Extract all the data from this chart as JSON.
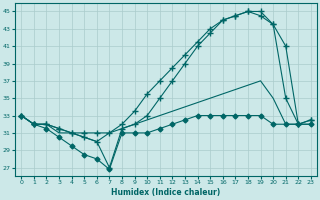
{
  "xlabel": "Humidex (Indice chaleur)",
  "bg_color": "#cce8e8",
  "grid_color": "#aacccc",
  "line_color": "#006666",
  "xlim": [
    -0.5,
    23.5
  ],
  "ylim": [
    26,
    46
  ],
  "yticks": [
    27,
    29,
    31,
    33,
    35,
    37,
    39,
    41,
    43,
    45
  ],
  "xticks": [
    0,
    1,
    2,
    3,
    4,
    5,
    6,
    7,
    8,
    9,
    10,
    11,
    12,
    13,
    14,
    15,
    16,
    17,
    18,
    19,
    20,
    21,
    22,
    23
  ],
  "lines": [
    {
      "x": [
        0,
        1,
        2,
        3,
        4,
        5,
        6,
        7,
        8,
        9,
        10,
        11,
        12,
        13,
        14,
        15,
        16,
        17,
        18,
        19,
        20,
        21,
        22,
        23
      ],
      "y": [
        33,
        32,
        32,
        31,
        31,
        30.5,
        30,
        31,
        31.5,
        32,
        32.5,
        33,
        33.5,
        34,
        34.5,
        35,
        35.5,
        36,
        36.5,
        37,
        35,
        32,
        32,
        32
      ],
      "marker": null
    },
    {
      "x": [
        0,
        1,
        2,
        3,
        4,
        5,
        6,
        7,
        8,
        9,
        10,
        11,
        12,
        13,
        14,
        15,
        16,
        17,
        18,
        19,
        20,
        21,
        22,
        23
      ],
      "y": [
        33,
        32,
        31.5,
        30.5,
        29.5,
        28.5,
        28,
        26.8,
        31,
        31,
        31,
        31.5,
        32,
        32.5,
        33,
        33,
        33,
        33,
        33,
        33,
        32,
        32,
        32,
        32
      ],
      "marker": "D"
    },
    {
      "x": [
        0,
        1,
        2,
        3,
        4,
        5,
        6,
        7,
        8,
        9,
        10,
        11,
        12,
        13,
        14,
        15,
        16,
        17,
        18,
        19,
        20,
        21,
        22,
        23
      ],
      "y": [
        33,
        32,
        32,
        31.5,
        31,
        31,
        31,
        31,
        32,
        33.5,
        35.5,
        37,
        38.5,
        40,
        41.5,
        43,
        44,
        44.5,
        45,
        44.5,
        43.5,
        35,
        32,
        32.5
      ],
      "marker": "+"
    },
    {
      "x": [
        0,
        1,
        2,
        3,
        4,
        5,
        6,
        7,
        8,
        9,
        10,
        11,
        12,
        13,
        14,
        15,
        16,
        17,
        18,
        19,
        20,
        21,
        22,
        23
      ],
      "y": [
        33,
        32,
        32,
        31.5,
        31,
        30.5,
        30,
        27,
        31.5,
        32,
        33,
        35,
        37,
        39,
        41,
        42.5,
        44,
        44.5,
        45,
        45,
        43.5,
        41,
        32,
        32.5
      ],
      "marker": "+"
    }
  ]
}
